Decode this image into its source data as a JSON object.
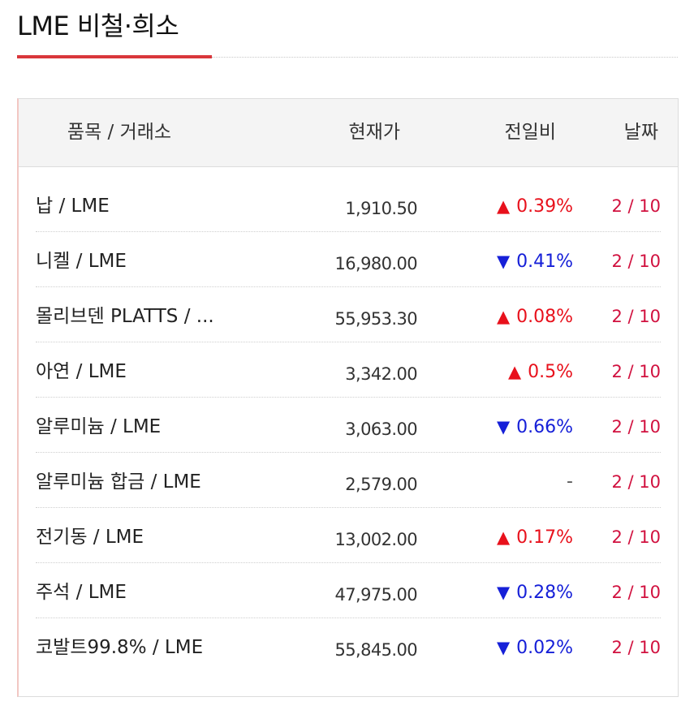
{
  "header": {
    "title": "LME 비철·희소"
  },
  "colors": {
    "accent": "#d9363b",
    "up": "#e8111c",
    "down": "#1620d8",
    "date": "#d1113f"
  },
  "table": {
    "columns": {
      "item": "품목 / 거래소",
      "price": "현재가",
      "change": "전일비",
      "date": "날짜"
    },
    "rows": [
      {
        "name": "납 / LME",
        "price": "1,910.50",
        "direction": "up",
        "arrow": "▲",
        "change": "0.39%",
        "date": "2 / 10"
      },
      {
        "name": "니켈 / LME",
        "price": "16,980.00",
        "direction": "down",
        "arrow": "▼",
        "change": "0.41%",
        "date": "2 / 10"
      },
      {
        "name": "몰리브덴 PLATTS / ...",
        "price": "55,953.30",
        "direction": "up",
        "arrow": "▲",
        "change": "0.08%",
        "date": "2 / 10"
      },
      {
        "name": "아연 / LME",
        "price": "3,342.00",
        "direction": "up",
        "arrow": "▲",
        "change": "0.5%",
        "date": "2 / 10"
      },
      {
        "name": "알루미늄 / LME",
        "price": "3,063.00",
        "direction": "down",
        "arrow": "▼",
        "change": "0.66%",
        "date": "2 / 10"
      },
      {
        "name": "알루미늄 합금 / LME",
        "price": "2,579.00",
        "direction": "flat",
        "arrow": "",
        "change": "-",
        "date": "2 / 10"
      },
      {
        "name": "전기동 / LME",
        "price": "13,002.00",
        "direction": "up",
        "arrow": "▲",
        "change": "0.17%",
        "date": "2 / 10"
      },
      {
        "name": "주석 / LME",
        "price": "47,975.00",
        "direction": "down",
        "arrow": "▼",
        "change": "0.28%",
        "date": "2 / 10"
      },
      {
        "name": "코발트99.8% / LME",
        "price": "55,845.00",
        "direction": "down",
        "arrow": "▼",
        "change": "0.02%",
        "date": "2 / 10"
      }
    ]
  }
}
